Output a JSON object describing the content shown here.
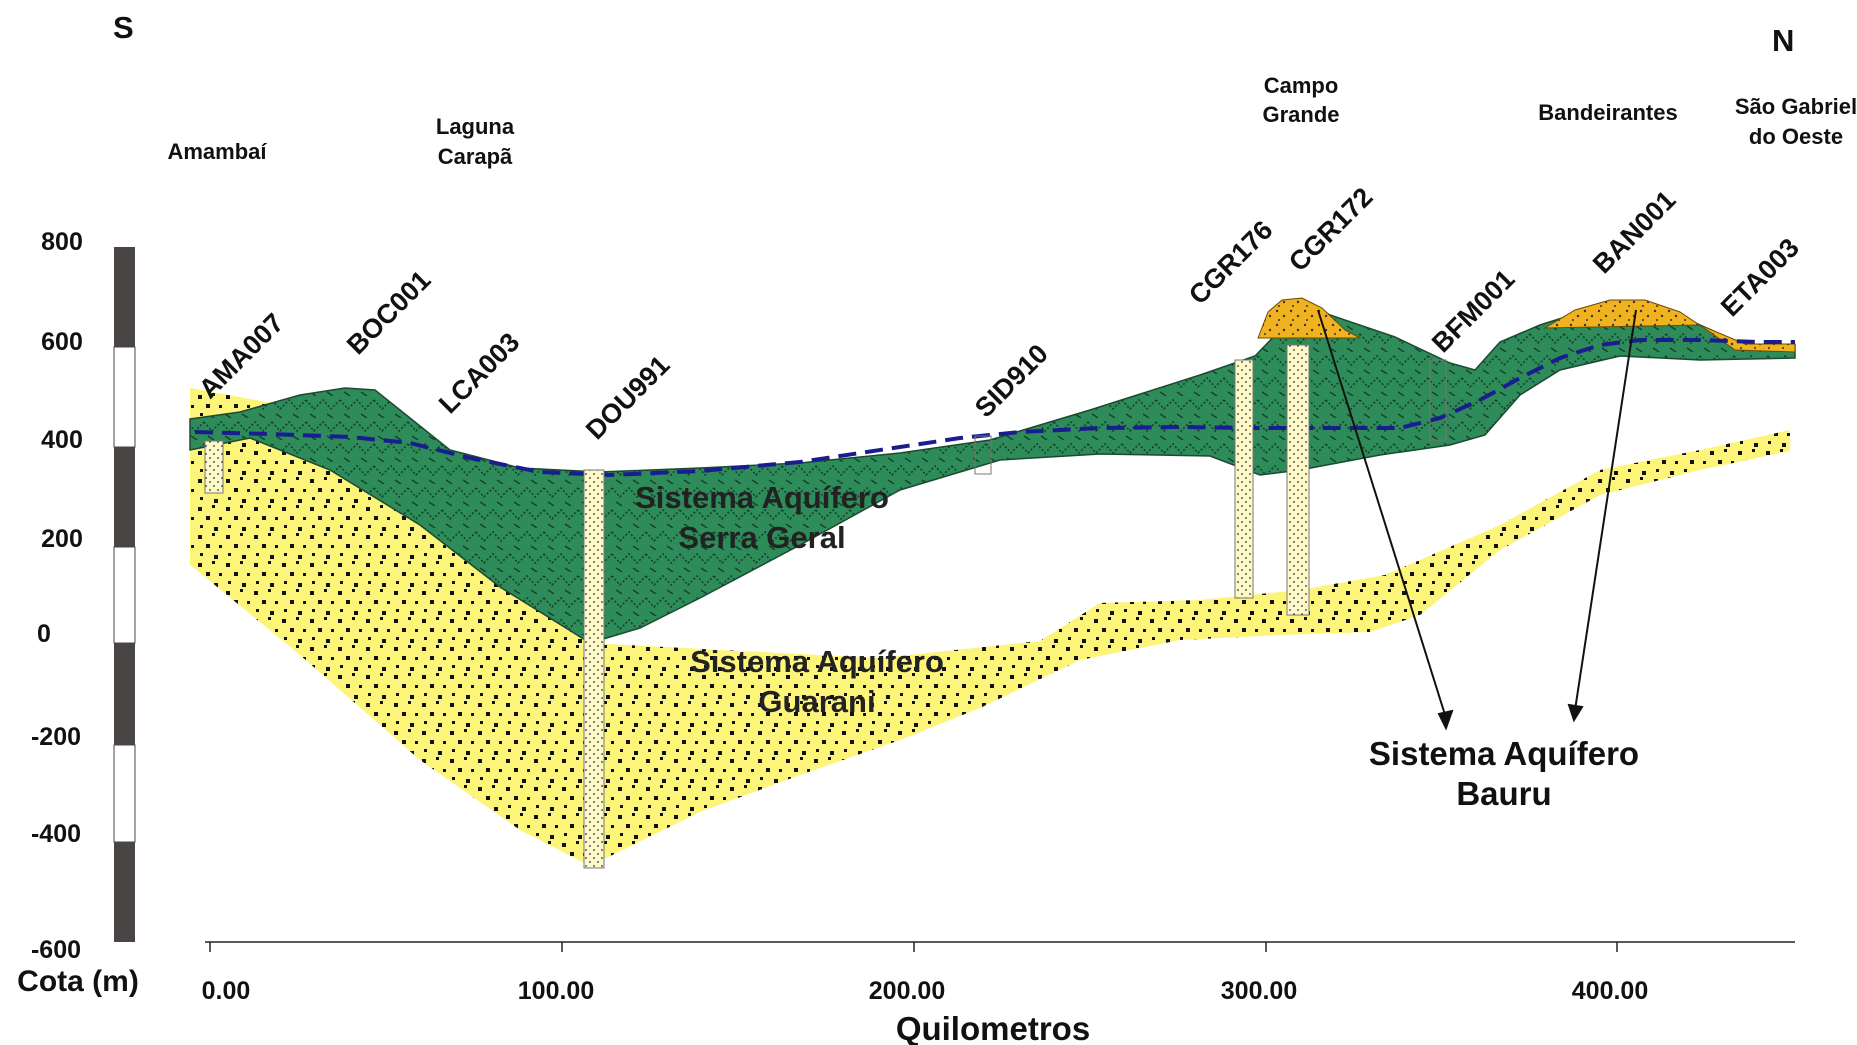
{
  "directions": {
    "south": "S",
    "north": "N"
  },
  "cities": [
    {
      "lines": [
        "Amambaí"
      ]
    },
    {
      "lines": [
        "Laguna",
        "Carapã"
      ]
    },
    {
      "lines": [
        "Campo",
        "Grande"
      ]
    },
    {
      "lines": [
        "Bandeirantes"
      ]
    },
    {
      "lines": [
        "São Gabriel",
        "do Oeste"
      ]
    }
  ],
  "wells": [
    "AMA007",
    "BOC001",
    "LCA003",
    "DOU991",
    "SID910",
    "CGR176",
    "CGR172",
    "BFM001",
    "BAN001",
    "ETA003"
  ],
  "units": {
    "serra_geral": [
      "Sistema Aquífero",
      "Serra Geral"
    ],
    "guarani": [
      "Sistema Aquífero",
      "Guarani"
    ],
    "bauru": [
      "Sistema Aquífero",
      "Bauru"
    ]
  },
  "y_axis": {
    "title": "Cota (m)",
    "ticks": [
      "800",
      "600",
      "400",
      "200",
      "0",
      "-200",
      "-400",
      "-600"
    ]
  },
  "x_axis": {
    "title": "Quilometros",
    "ticks": [
      "0.00",
      "100.00",
      "200.00",
      "300.00",
      "400.00"
    ]
  },
  "colors": {
    "serra_geral": "#2e8b5a",
    "guarani": "#fdf47a",
    "bauru": "#f0b21f",
    "water_table": "#1a1d8f",
    "scale_dark": "#4a4545"
  }
}
